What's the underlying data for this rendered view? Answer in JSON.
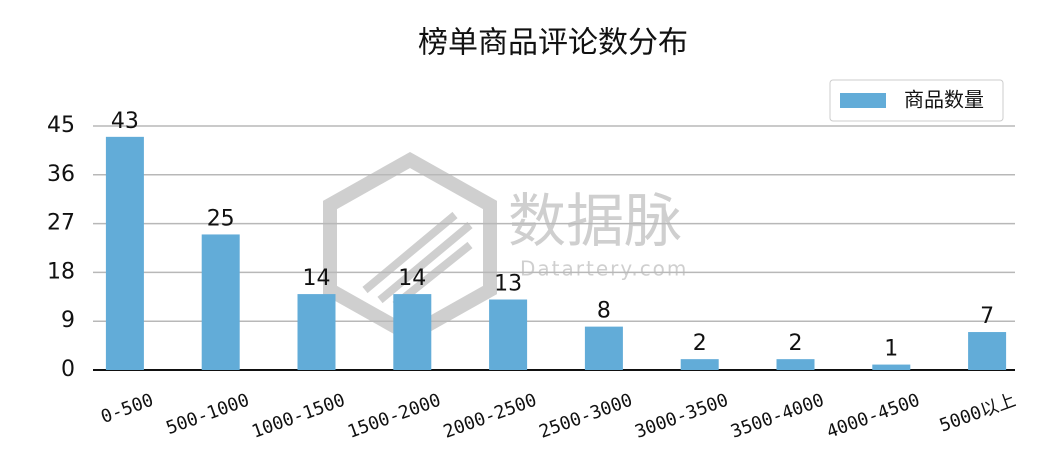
{
  "chart_data": {
    "type": "bar",
    "title": "榜单商品评论数分布",
    "categories": [
      "0-500",
      "500-1000",
      "1000-1500",
      "1500-2000",
      "2000-2500",
      "2500-3000",
      "3000-3500",
      "3500-4000",
      "4000-4500",
      "5000以上"
    ],
    "series": [
      {
        "name": "商品数量",
        "color": "#62acd8",
        "values": [
          43,
          25,
          14,
          14,
          13,
          8,
          2,
          2,
          1,
          7
        ]
      }
    ],
    "ylim": [
      0,
      45
    ],
    "yticks": [
      0,
      9,
      18,
      27,
      36,
      45
    ],
    "grid": true,
    "legend": "upper right"
  },
  "watermark": {
    "name": "数据脉",
    "site": "Datartery.com"
  }
}
